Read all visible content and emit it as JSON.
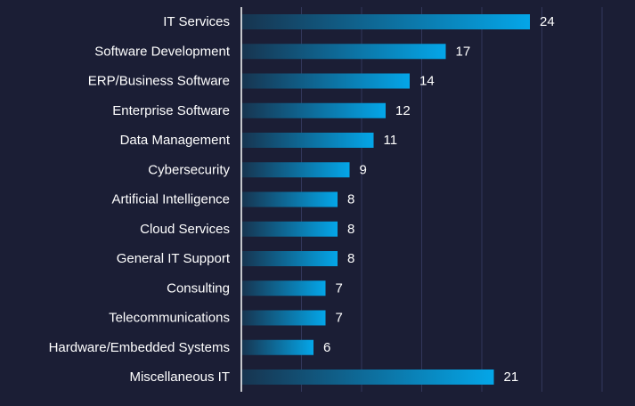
{
  "chart_data": {
    "type": "bar",
    "orientation": "horizontal",
    "categories": [
      "IT Services",
      "Software Development",
      "ERP/Business Software",
      "Enterprise Software",
      "Data Management",
      "Cybersecurity",
      "Artificial Intelligence",
      "Cloud Services",
      "General IT Support",
      "Consulting",
      "Telecommunications",
      "Hardware/Embedded Systems",
      "Miscellaneous IT"
    ],
    "values": [
      24,
      17,
      14,
      12,
      11,
      9,
      8,
      8,
      8,
      7,
      7,
      6,
      21
    ],
    "xlim": [
      0,
      30
    ],
    "grid": true,
    "data_labels": true,
    "colors": {
      "background": "#1b1e35",
      "bar_start": "#17344f",
      "bar_end": "#04a6e8",
      "gridline": "#32375a",
      "axis": "#ffffff",
      "text": "#ffffff"
    }
  }
}
